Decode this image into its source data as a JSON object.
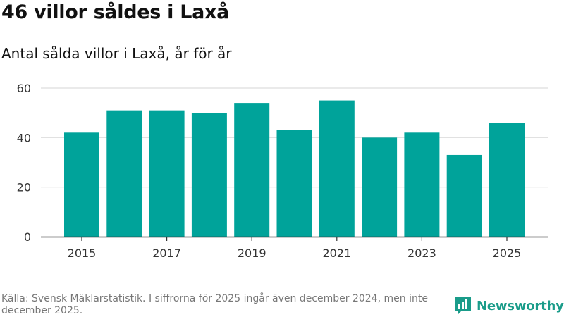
{
  "title": "46 villor såldes i Laxå",
  "subtitle": "Antal sålda villor i Laxå, år för år",
  "footer": {
    "source": "Källa: Svensk Mäklarstatistik. I siffrorna för 2025 ingår även december 2024, men inte december 2025.",
    "logo_text": "Newsworthy",
    "logo_icon": "newsworthy-logo-icon"
  },
  "colors": {
    "bar": "#00a39a",
    "grid": "#dddddd",
    "axis": "#333333",
    "tick_text": "#333333",
    "logo": "#1a9c8a"
  },
  "chart_data": {
    "type": "bar",
    "title": "46 villor såldes i Laxå",
    "subtitle": "Antal sålda villor i Laxå, år för år",
    "categories": [
      2015,
      2016,
      2017,
      2018,
      2019,
      2020,
      2021,
      2022,
      2023,
      2024,
      2025
    ],
    "values": [
      42,
      51,
      51,
      50,
      54,
      43,
      55,
      40,
      42,
      33,
      46
    ],
    "xtick_labels": [
      "2015",
      "2017",
      "2019",
      "2021",
      "2023",
      "2025"
    ],
    "yticks": [
      0,
      20,
      40,
      60
    ],
    "ylim": [
      0,
      60
    ],
    "xlabel": "",
    "ylabel": "",
    "grid": true,
    "legend": "none"
  }
}
